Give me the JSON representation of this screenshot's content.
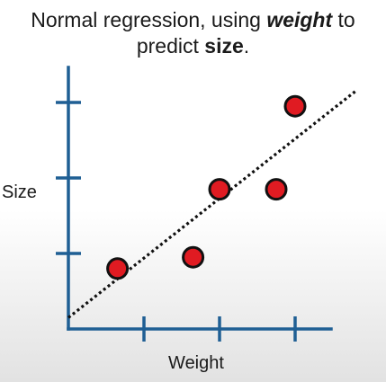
{
  "title": {
    "line1_prefix": "Normal regression, using ",
    "line1_emph": "weight",
    "line1_suffix": " to",
    "line2_prefix": "predict ",
    "line2_emph": "size",
    "line2_suffix": "."
  },
  "colors": {
    "axis": "#1f5f94",
    "point_fill": "#e01b22",
    "point_stroke": "#111111",
    "fit_line": "#111111"
  },
  "chart_data": {
    "type": "scatter",
    "xlabel": "Weight",
    "ylabel": "Size",
    "xlim": [
      0,
      3.6
    ],
    "ylim": [
      0,
      3.5
    ],
    "xticks": [
      1,
      2,
      3
    ],
    "yticks": [
      1,
      2,
      3
    ],
    "points": [
      {
        "x": 0.65,
        "y": 0.8
      },
      {
        "x": 1.65,
        "y": 0.95
      },
      {
        "x": 2.0,
        "y": 1.85
      },
      {
        "x": 2.75,
        "y": 1.85
      },
      {
        "x": 3.0,
        "y": 2.95
      }
    ],
    "fit_line": {
      "style": "dotted",
      "start": {
        "x": 0,
        "y": 0.15
      },
      "end": {
        "x": 3.8,
        "y": 3.15
      }
    }
  }
}
